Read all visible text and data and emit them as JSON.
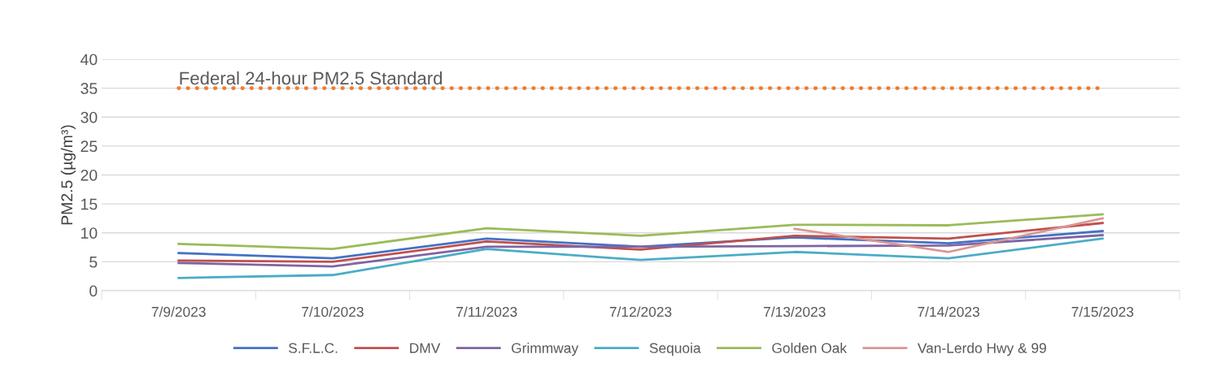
{
  "chart_data": {
    "type": "line",
    "ylabel": "PM2.5 (µg/m³)",
    "categories": [
      "7/9/2023",
      "7/10/2023",
      "7/11/2023",
      "7/12/2023",
      "7/13/2023",
      "7/14/2023",
      "7/15/2023"
    ],
    "series": [
      {
        "name": "S.F.L.C.",
        "color": "#4472c4",
        "values": [
          6.5,
          5.6,
          9.0,
          7.6,
          9.2,
          8.2,
          10.3
        ]
      },
      {
        "name": "DMV",
        "color": "#c0504d",
        "values": [
          5.2,
          5.0,
          8.5,
          7.1,
          9.5,
          9.0,
          11.7
        ]
      },
      {
        "name": "Grimmway",
        "color": "#8064a2",
        "values": [
          4.8,
          4.2,
          7.6,
          7.6,
          7.7,
          7.8,
          9.6
        ]
      },
      {
        "name": "Sequoia",
        "color": "#4bacc6",
        "values": [
          2.2,
          2.7,
          7.2,
          5.3,
          6.7,
          5.6,
          9.0
        ]
      },
      {
        "name": "Golden Oak",
        "color": "#9bbb59",
        "values": [
          8.1,
          7.2,
          10.8,
          9.5,
          11.4,
          11.3,
          13.2
        ]
      },
      {
        "name": "Van-Lerdo Hwy & 99",
        "color": "#d99694",
        "values": [
          null,
          null,
          null,
          null,
          10.7,
          6.7,
          12.5
        ]
      }
    ],
    "ref_lines": [
      {
        "axis": "y",
        "value": 35,
        "label": "Federal 24-hour PM2.5 Standard",
        "color": "#ed7d31",
        "line_style": "dotted"
      }
    ],
    "ylim": [
      0,
      40
    ],
    "yticks": [
      0,
      5,
      10,
      15,
      20,
      25,
      30,
      35,
      40
    ],
    "grid": "y",
    "legend": "bottom",
    "marker": "none",
    "line_style": "solid"
  }
}
